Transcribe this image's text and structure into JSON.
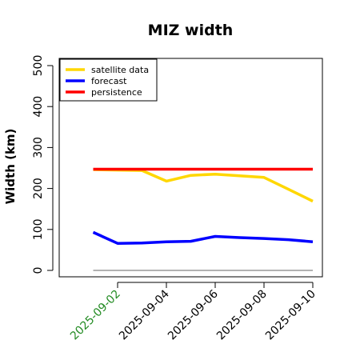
{
  "chart_data": {
    "type": "line",
    "title": "MIZ width",
    "xlabel": "",
    "ylabel": "Width (km)",
    "x_ticks": [
      "2025-09-02",
      "2025-09-04",
      "2025-09-06",
      "2025-09-08",
      "2025-09-10"
    ],
    "x_tick_colors": [
      "#228b22",
      "#000000",
      "#000000",
      "#000000",
      "#000000"
    ],
    "xlim": [
      "2025-08-31",
      "2025-09-10"
    ],
    "y_ticks": [
      0,
      100,
      200,
      300,
      400,
      500
    ],
    "ylim": [
      0,
      520
    ],
    "grid": false,
    "legend_position": "top-left",
    "x": [
      "2025-09-01",
      "2025-09-02",
      "2025-09-03",
      "2025-09-04",
      "2025-09-05",
      "2025-09-06",
      "2025-09-07",
      "2025-09-08",
      "2025-09-09",
      "2025-09-10"
    ],
    "series": [
      {
        "name": "satellite data",
        "color": "#ffd700",
        "values": [
          246,
          245,
          244,
          218,
          232,
          235,
          231,
          227,
          198,
          169
        ]
      },
      {
        "name": "forecast",
        "color": "#0000ff",
        "values": [
          93,
          66,
          67,
          70,
          71,
          83,
          80,
          78,
          75,
          70
        ]
      },
      {
        "name": "persistence",
        "color": "#ff0000",
        "values": [
          247,
          247,
          247,
          247,
          247,
          247,
          247,
          247,
          247,
          247
        ]
      }
    ],
    "reference_line": {
      "value": 0,
      "color": "#999999"
    }
  }
}
